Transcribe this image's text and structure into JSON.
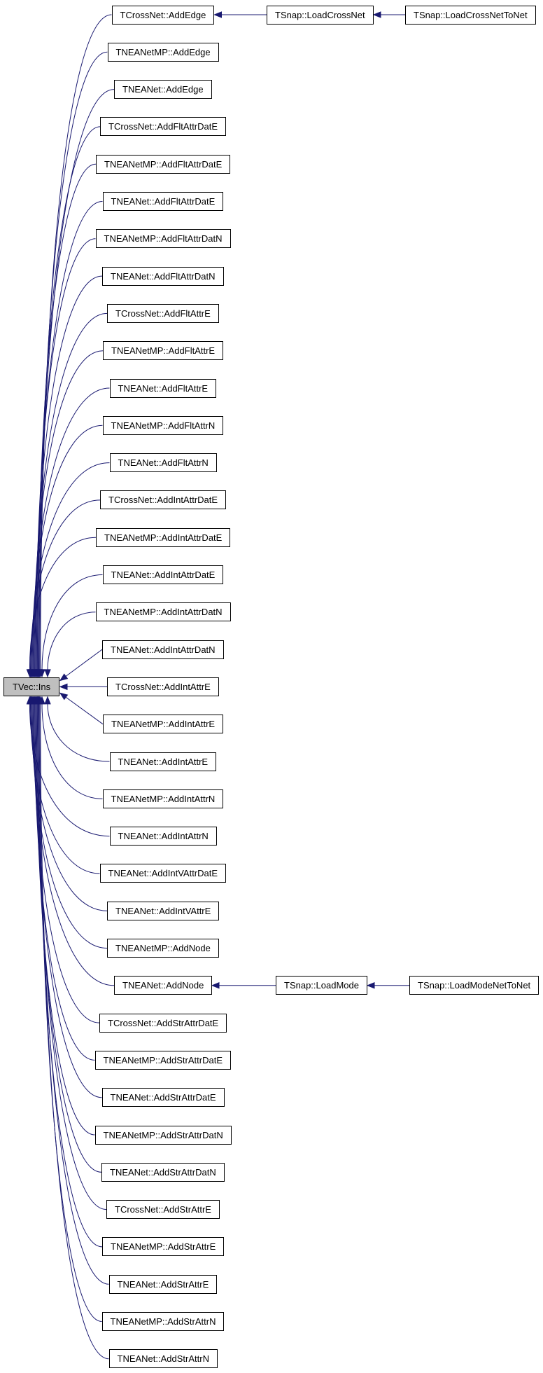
{
  "graph": {
    "edge_color": "#191970",
    "focus_fill": "#bfbfbf",
    "focus": "TVec::Ins",
    "callers": [
      "TCrossNet::AddEdge",
      "TNEANetMP::AddEdge",
      "TNEANet::AddEdge",
      "TCrossNet::AddFltAttrDatE",
      "TNEANetMP::AddFltAttrDatE",
      "TNEANet::AddFltAttrDatE",
      "TNEANetMP::AddFltAttrDatN",
      "TNEANet::AddFltAttrDatN",
      "TCrossNet::AddFltAttrE",
      "TNEANetMP::AddFltAttrE",
      "TNEANet::AddFltAttrE",
      "TNEANetMP::AddFltAttrN",
      "TNEANet::AddFltAttrN",
      "TCrossNet::AddIntAttrDatE",
      "TNEANetMP::AddIntAttrDatE",
      "TNEANet::AddIntAttrDatE",
      "TNEANetMP::AddIntAttrDatN",
      "TNEANet::AddIntAttrDatN",
      "TCrossNet::AddIntAttrE",
      "TNEANetMP::AddIntAttrE",
      "TNEANet::AddIntAttrE",
      "TNEANetMP::AddIntAttrN",
      "TNEANet::AddIntAttrN",
      "TNEANet::AddIntVAttrDatE",
      "TNEANet::AddIntVAttrE",
      "TNEANetMP::AddNode",
      "TNEANet::AddNode",
      "TCrossNet::AddStrAttrDatE",
      "TNEANetMP::AddStrAttrDatE",
      "TNEANet::AddStrAttrDatE",
      "TNEANetMP::AddStrAttrDatN",
      "TNEANet::AddStrAttrDatN",
      "TCrossNet::AddStrAttrE",
      "TNEANetMP::AddStrAttrE",
      "TNEANet::AddStrAttrE",
      "TNEANetMP::AddStrAttrN",
      "TNEANet::AddStrAttrN"
    ],
    "chains": [
      {
        "from_caller": "TCrossNet::AddEdge",
        "nodes": [
          "TSnap::LoadCrossNet",
          "TSnap::LoadCrossNetToNet"
        ]
      },
      {
        "from_caller": "TNEANet::AddNode",
        "nodes": [
          "TSnap::LoadMode",
          "TSnap::LoadModeNetToNet"
        ]
      }
    ]
  }
}
